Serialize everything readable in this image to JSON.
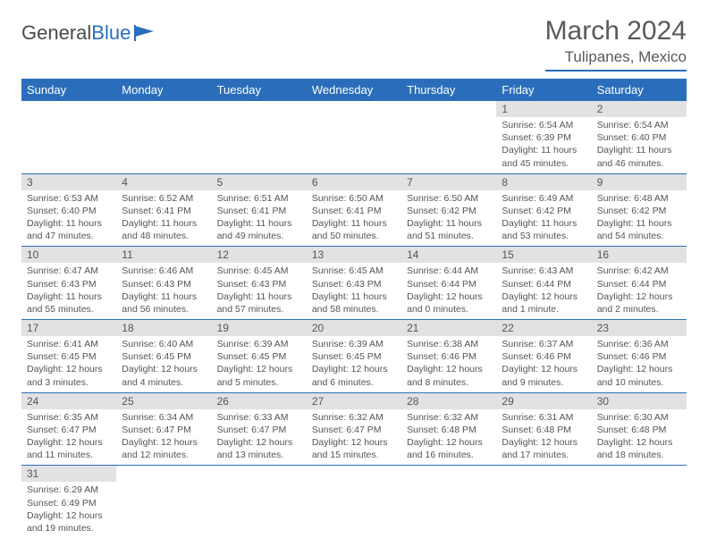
{
  "logo": {
    "text1": "General",
    "text2": "Blue"
  },
  "title": "March 2024",
  "location": "Tulipanes, Mexico",
  "day_headers": [
    "Sunday",
    "Monday",
    "Tuesday",
    "Wednesday",
    "Thursday",
    "Friday",
    "Saturday"
  ],
  "colors": {
    "brand_blue": "#2a6ebb",
    "header_gray": "#e2e2e2",
    "text_gray": "#555555"
  },
  "weeks": [
    [
      {
        "n": "",
        "sr": "",
        "ss": "",
        "dl": ""
      },
      {
        "n": "",
        "sr": "",
        "ss": "",
        "dl": ""
      },
      {
        "n": "",
        "sr": "",
        "ss": "",
        "dl": ""
      },
      {
        "n": "",
        "sr": "",
        "ss": "",
        "dl": ""
      },
      {
        "n": "",
        "sr": "",
        "ss": "",
        "dl": ""
      },
      {
        "n": "1",
        "sr": "Sunrise: 6:54 AM",
        "ss": "Sunset: 6:39 PM",
        "dl": "Daylight: 11 hours and 45 minutes."
      },
      {
        "n": "2",
        "sr": "Sunrise: 6:54 AM",
        "ss": "Sunset: 6:40 PM",
        "dl": "Daylight: 11 hours and 46 minutes."
      }
    ],
    [
      {
        "n": "3",
        "sr": "Sunrise: 6:53 AM",
        "ss": "Sunset: 6:40 PM",
        "dl": "Daylight: 11 hours and 47 minutes."
      },
      {
        "n": "4",
        "sr": "Sunrise: 6:52 AM",
        "ss": "Sunset: 6:41 PM",
        "dl": "Daylight: 11 hours and 48 minutes."
      },
      {
        "n": "5",
        "sr": "Sunrise: 6:51 AM",
        "ss": "Sunset: 6:41 PM",
        "dl": "Daylight: 11 hours and 49 minutes."
      },
      {
        "n": "6",
        "sr": "Sunrise: 6:50 AM",
        "ss": "Sunset: 6:41 PM",
        "dl": "Daylight: 11 hours and 50 minutes."
      },
      {
        "n": "7",
        "sr": "Sunrise: 6:50 AM",
        "ss": "Sunset: 6:42 PM",
        "dl": "Daylight: 11 hours and 51 minutes."
      },
      {
        "n": "8",
        "sr": "Sunrise: 6:49 AM",
        "ss": "Sunset: 6:42 PM",
        "dl": "Daylight: 11 hours and 53 minutes."
      },
      {
        "n": "9",
        "sr": "Sunrise: 6:48 AM",
        "ss": "Sunset: 6:42 PM",
        "dl": "Daylight: 11 hours and 54 minutes."
      }
    ],
    [
      {
        "n": "10",
        "sr": "Sunrise: 6:47 AM",
        "ss": "Sunset: 6:43 PM",
        "dl": "Daylight: 11 hours and 55 minutes."
      },
      {
        "n": "11",
        "sr": "Sunrise: 6:46 AM",
        "ss": "Sunset: 6:43 PM",
        "dl": "Daylight: 11 hours and 56 minutes."
      },
      {
        "n": "12",
        "sr": "Sunrise: 6:45 AM",
        "ss": "Sunset: 6:43 PM",
        "dl": "Daylight: 11 hours and 57 minutes."
      },
      {
        "n": "13",
        "sr": "Sunrise: 6:45 AM",
        "ss": "Sunset: 6:43 PM",
        "dl": "Daylight: 11 hours and 58 minutes."
      },
      {
        "n": "14",
        "sr": "Sunrise: 6:44 AM",
        "ss": "Sunset: 6:44 PM",
        "dl": "Daylight: 12 hours and 0 minutes."
      },
      {
        "n": "15",
        "sr": "Sunrise: 6:43 AM",
        "ss": "Sunset: 6:44 PM",
        "dl": "Daylight: 12 hours and 1 minute."
      },
      {
        "n": "16",
        "sr": "Sunrise: 6:42 AM",
        "ss": "Sunset: 6:44 PM",
        "dl": "Daylight: 12 hours and 2 minutes."
      }
    ],
    [
      {
        "n": "17",
        "sr": "Sunrise: 6:41 AM",
        "ss": "Sunset: 6:45 PM",
        "dl": "Daylight: 12 hours and 3 minutes."
      },
      {
        "n": "18",
        "sr": "Sunrise: 6:40 AM",
        "ss": "Sunset: 6:45 PM",
        "dl": "Daylight: 12 hours and 4 minutes."
      },
      {
        "n": "19",
        "sr": "Sunrise: 6:39 AM",
        "ss": "Sunset: 6:45 PM",
        "dl": "Daylight: 12 hours and 5 minutes."
      },
      {
        "n": "20",
        "sr": "Sunrise: 6:39 AM",
        "ss": "Sunset: 6:45 PM",
        "dl": "Daylight: 12 hours and 6 minutes."
      },
      {
        "n": "21",
        "sr": "Sunrise: 6:38 AM",
        "ss": "Sunset: 6:46 PM",
        "dl": "Daylight: 12 hours and 8 minutes."
      },
      {
        "n": "22",
        "sr": "Sunrise: 6:37 AM",
        "ss": "Sunset: 6:46 PM",
        "dl": "Daylight: 12 hours and 9 minutes."
      },
      {
        "n": "23",
        "sr": "Sunrise: 6:36 AM",
        "ss": "Sunset: 6:46 PM",
        "dl": "Daylight: 12 hours and 10 minutes."
      }
    ],
    [
      {
        "n": "24",
        "sr": "Sunrise: 6:35 AM",
        "ss": "Sunset: 6:47 PM",
        "dl": "Daylight: 12 hours and 11 minutes."
      },
      {
        "n": "25",
        "sr": "Sunrise: 6:34 AM",
        "ss": "Sunset: 6:47 PM",
        "dl": "Daylight: 12 hours and 12 minutes."
      },
      {
        "n": "26",
        "sr": "Sunrise: 6:33 AM",
        "ss": "Sunset: 6:47 PM",
        "dl": "Daylight: 12 hours and 13 minutes."
      },
      {
        "n": "27",
        "sr": "Sunrise: 6:32 AM",
        "ss": "Sunset: 6:47 PM",
        "dl": "Daylight: 12 hours and 15 minutes."
      },
      {
        "n": "28",
        "sr": "Sunrise: 6:32 AM",
        "ss": "Sunset: 6:48 PM",
        "dl": "Daylight: 12 hours and 16 minutes."
      },
      {
        "n": "29",
        "sr": "Sunrise: 6:31 AM",
        "ss": "Sunset: 6:48 PM",
        "dl": "Daylight: 12 hours and 17 minutes."
      },
      {
        "n": "30",
        "sr": "Sunrise: 6:30 AM",
        "ss": "Sunset: 6:48 PM",
        "dl": "Daylight: 12 hours and 18 minutes."
      }
    ],
    [
      {
        "n": "31",
        "sr": "Sunrise: 6:29 AM",
        "ss": "Sunset: 6:49 PM",
        "dl": "Daylight: 12 hours and 19 minutes."
      },
      {
        "n": "",
        "sr": "",
        "ss": "",
        "dl": ""
      },
      {
        "n": "",
        "sr": "",
        "ss": "",
        "dl": ""
      },
      {
        "n": "",
        "sr": "",
        "ss": "",
        "dl": ""
      },
      {
        "n": "",
        "sr": "",
        "ss": "",
        "dl": ""
      },
      {
        "n": "",
        "sr": "",
        "ss": "",
        "dl": ""
      },
      {
        "n": "",
        "sr": "",
        "ss": "",
        "dl": ""
      }
    ]
  ]
}
